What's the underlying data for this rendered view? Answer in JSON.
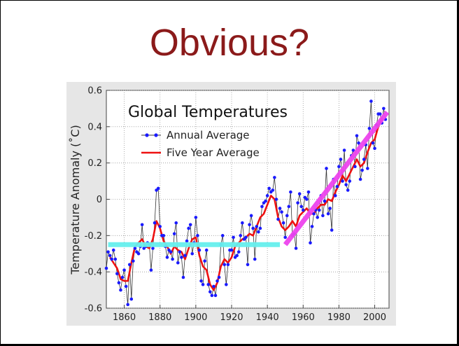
{
  "slide": {
    "title": "Obvious?"
  },
  "chart_data": {
    "type": "line",
    "title": "Global Temperatures",
    "xlabel": "",
    "ylabel": "Temperature Anomaly (˚C)",
    "xlim": [
      1850,
      2008
    ],
    "ylim": [
      -0.6,
      0.6
    ],
    "xticks": [
      1860,
      1880,
      1900,
      1920,
      1940,
      1960,
      1980,
      2000
    ],
    "yticks": [
      -0.6,
      -0.4,
      -0.2,
      0,
      0.2,
      0.4,
      0.6
    ],
    "xtick_labels": [
      "1860",
      "1880",
      "1900",
      "1920",
      "1940",
      "1960",
      "1980",
      "2000"
    ],
    "ytick_labels": [
      "-0.6",
      "-0.4",
      "-0.2",
      "0",
      "0.2",
      "0.4",
      "0.6"
    ],
    "grid": true,
    "legend_position": "top-left",
    "series": [
      {
        "name": "Annual Average",
        "color": "#1a1aff",
        "x": [
          1850,
          1851,
          1852,
          1853,
          1854,
          1855,
          1856,
          1857,
          1858,
          1859,
          1860,
          1861,
          1862,
          1863,
          1864,
          1865,
          1866,
          1867,
          1868,
          1869,
          1870,
          1871,
          1872,
          1873,
          1874,
          1875,
          1876,
          1877,
          1878,
          1879,
          1880,
          1881,
          1882,
          1883,
          1884,
          1885,
          1886,
          1887,
          1888,
          1889,
          1890,
          1891,
          1892,
          1893,
          1894,
          1895,
          1896,
          1897,
          1898,
          1899,
          1900,
          1901,
          1902,
          1903,
          1904,
          1905,
          1906,
          1907,
          1908,
          1909,
          1910,
          1911,
          1912,
          1913,
          1914,
          1915,
          1916,
          1917,
          1918,
          1919,
          1920,
          1921,
          1922,
          1923,
          1924,
          1925,
          1926,
          1927,
          1928,
          1929,
          1930,
          1931,
          1932,
          1933,
          1934,
          1935,
          1936,
          1937,
          1938,
          1939,
          1940,
          1941,
          1942,
          1943,
          1944,
          1945,
          1946,
          1947,
          1948,
          1949,
          1950,
          1951,
          1952,
          1953,
          1954,
          1955,
          1956,
          1957,
          1958,
          1959,
          1960,
          1961,
          1962,
          1963,
          1964,
          1965,
          1966,
          1967,
          1968,
          1969,
          1970,
          1971,
          1972,
          1973,
          1974,
          1975,
          1976,
          1977,
          1978,
          1979,
          1980,
          1981,
          1982,
          1983,
          1984,
          1985,
          1986,
          1987,
          1988,
          1989,
          1990,
          1991,
          1992,
          1993,
          1994,
          1995,
          1996,
          1997,
          1998,
          1999,
          2000,
          2001,
          2002,
          2003,
          2004,
          2005,
          2006
        ],
        "values": [
          -0.38,
          -0.29,
          -0.31,
          -0.33,
          -0.28,
          -0.33,
          -0.41,
          -0.46,
          -0.5,
          -0.43,
          -0.39,
          -0.48,
          -0.58,
          -0.36,
          -0.55,
          -0.34,
          -0.27,
          -0.29,
          -0.3,
          -0.26,
          -0.14,
          -0.27,
          -0.26,
          -0.24,
          -0.25,
          -0.39,
          -0.27,
          -0.13,
          0.05,
          0.06,
          -0.15,
          -0.2,
          -0.2,
          -0.26,
          -0.32,
          -0.28,
          -0.29,
          -0.33,
          -0.19,
          -0.13,
          -0.35,
          -0.29,
          -0.32,
          -0.43,
          -0.31,
          -0.23,
          -0.16,
          -0.14,
          -0.3,
          -0.24,
          -0.1,
          -0.2,
          -0.28,
          -0.45,
          -0.47,
          -0.34,
          -0.28,
          -0.47,
          -0.51,
          -0.53,
          -0.48,
          -0.53,
          -0.45,
          -0.43,
          -0.25,
          -0.2,
          -0.36,
          -0.47,
          -0.36,
          -0.28,
          -0.28,
          -0.21,
          -0.32,
          -0.31,
          -0.29,
          -0.2,
          -0.13,
          -0.22,
          -0.21,
          -0.36,
          -0.14,
          -0.09,
          -0.16,
          -0.33,
          -0.15,
          -0.18,
          -0.16,
          -0.04,
          -0.02,
          -0.01,
          0.02,
          0.06,
          0.04,
          0.05,
          0.12,
          0.0,
          -0.11,
          -0.05,
          -0.07,
          -0.13,
          -0.21,
          -0.09,
          -0.04,
          0.04,
          -0.2,
          -0.19,
          -0.27,
          -0.02,
          0.03,
          -0.04,
          -0.06,
          0.01,
          0.0,
          0.04,
          -0.24,
          -0.15,
          -0.08,
          -0.06,
          -0.1,
          -0.06,
          0.02,
          -0.09,
          -0.01,
          0.17,
          -0.08,
          -0.05,
          -0.17,
          0.11,
          0.02,
          0.07,
          0.18,
          0.22,
          0.1,
          0.27,
          0.08,
          0.05,
          0.1,
          0.24,
          0.27,
          0.18,
          0.35,
          0.31,
          0.11,
          0.16,
          0.22,
          0.3,
          0.17,
          0.39,
          0.54,
          0.31,
          0.28,
          0.41,
          0.47,
          0.47,
          0.42,
          0.5,
          0.44
        ]
      },
      {
        "name": "Five Year Average",
        "color": "#ee1111",
        "x": [
          1852,
          1854,
          1856,
          1858,
          1860,
          1862,
          1864,
          1866,
          1868,
          1870,
          1872,
          1874,
          1876,
          1878,
          1880,
          1882,
          1884,
          1886,
          1888,
          1890,
          1892,
          1894,
          1896,
          1898,
          1900,
          1902,
          1904,
          1906,
          1908,
          1910,
          1912,
          1914,
          1916,
          1918,
          1920,
          1922,
          1924,
          1926,
          1928,
          1930,
          1932,
          1934,
          1936,
          1938,
          1940,
          1942,
          1944,
          1946,
          1948,
          1950,
          1952,
          1954,
          1956,
          1958,
          1960,
          1962,
          1964,
          1966,
          1968,
          1970,
          1972,
          1974,
          1976,
          1978,
          1980,
          1982,
          1984,
          1986,
          1988,
          1990,
          1992,
          1994,
          1996,
          1998,
          2000,
          2002,
          2004
        ],
        "values": [
          -0.32,
          -0.35,
          -0.38,
          -0.44,
          -0.45,
          -0.45,
          -0.35,
          -0.26,
          -0.24,
          -0.22,
          -0.26,
          -0.27,
          -0.22,
          -0.12,
          -0.16,
          -0.23,
          -0.26,
          -0.3,
          -0.26,
          -0.28,
          -0.29,
          -0.33,
          -0.27,
          -0.22,
          -0.21,
          -0.31,
          -0.37,
          -0.39,
          -0.47,
          -0.5,
          -0.46,
          -0.37,
          -0.33,
          -0.35,
          -0.32,
          -0.26,
          -0.24,
          -0.22,
          -0.21,
          -0.19,
          -0.2,
          -0.15,
          -0.1,
          -0.08,
          -0.03,
          0.02,
          0.0,
          -0.1,
          -0.15,
          -0.17,
          -0.15,
          -0.12,
          -0.15,
          -0.09,
          -0.07,
          -0.05,
          -0.08,
          -0.08,
          -0.05,
          -0.03,
          -0.03,
          0.0,
          -0.01,
          0.04,
          0.08,
          0.13,
          0.1,
          0.14,
          0.18,
          0.22,
          0.18,
          0.2,
          0.26,
          0.31,
          0.33,
          0.4,
          0.45
        ]
      }
    ],
    "annotations": [
      {
        "name": "pre-1945-flat-line",
        "color": "#66f0ee",
        "x": [
          1851,
          1947
        ],
        "values": [
          -0.25,
          -0.25
        ]
      },
      {
        "name": "post-1950-trend-line",
        "color": "#ee44ee",
        "x": [
          1950,
          2007
        ],
        "values": [
          -0.25,
          0.48
        ]
      }
    ]
  }
}
